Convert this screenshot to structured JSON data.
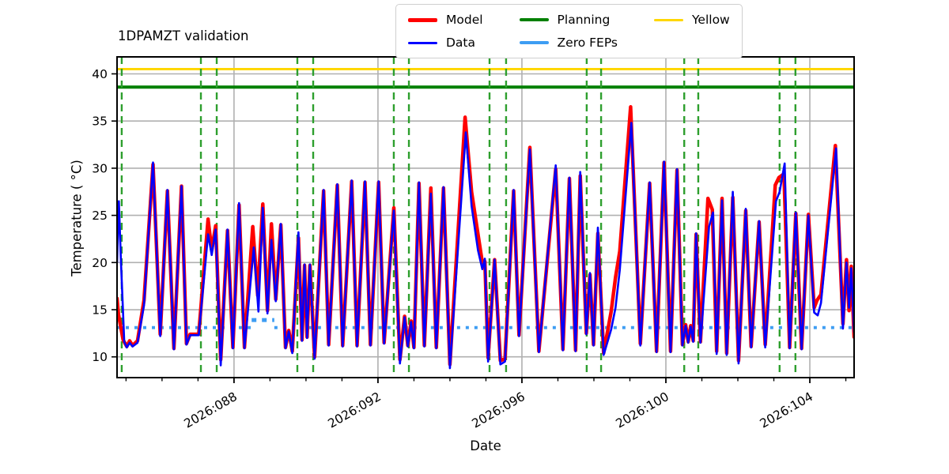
{
  "chart_data": {
    "type": "line",
    "title": "1DPAMZT validation",
    "xlabel": "Date",
    "ylabel": "Temperature ( °C)",
    "x_units": "2026 day-of-year",
    "xlim": [
      84.75,
      105.23
    ],
    "ylim": [
      7.8,
      41.8
    ],
    "grid": true,
    "yticks": [
      10,
      15,
      20,
      25,
      30,
      35,
      40
    ],
    "xticks_major": [
      {
        "x": 88,
        "label": "2026:088"
      },
      {
        "x": 92,
        "label": "2026:092"
      },
      {
        "x": 96,
        "label": "2026:096"
      },
      {
        "x": 100,
        "label": "2026:100"
      },
      {
        "x": 104,
        "label": "2026:104"
      }
    ],
    "xticks_minor": [
      85,
      86,
      87,
      89,
      90,
      91,
      93,
      94,
      95,
      97,
      98,
      99,
      101,
      102,
      103,
      105
    ],
    "limits": {
      "yellow": 40.5,
      "planning": 38.6
    },
    "zero_feps_line": {
      "value": 13.1,
      "raised_segment": {
        "from": 88.49,
        "to": 89.12,
        "value": 13.9
      }
    },
    "vlines_green_dashed": [
      84.88,
      87.08,
      87.52,
      89.76,
      90.2,
      92.44,
      92.86,
      95.1,
      95.56,
      97.8,
      98.2,
      100.51,
      100.9,
      103.16,
      103.6
    ],
    "colors": {
      "model": "#ff0000",
      "data": "#0000ff",
      "planning": "#008000",
      "zero_feps": "#3d9df3",
      "yellow": "#ffd700",
      "vline": "#2e9f2e",
      "grid": "#b0b0b0",
      "spine": "#000000"
    },
    "series": [
      {
        "name": "Model",
        "color": "#ff0000",
        "width": 4.5,
        "points": [
          [
            84.75,
            16.2
          ],
          [
            84.79,
            14.5
          ],
          [
            84.92,
            11.8
          ],
          [
            85.02,
            11.1
          ],
          [
            85.1,
            11.7
          ],
          [
            85.18,
            11.2
          ],
          [
            85.32,
            11.7
          ],
          [
            85.5,
            16.0
          ],
          [
            85.75,
            30.4
          ],
          [
            85.95,
            12.4
          ],
          [
            86.15,
            27.6
          ],
          [
            86.33,
            10.9
          ],
          [
            86.54,
            28.1
          ],
          [
            86.68,
            11.4
          ],
          [
            86.78,
            12.4
          ],
          [
            87.02,
            12.4
          ],
          [
            87.28,
            24.6
          ],
          [
            87.38,
            21.3
          ],
          [
            87.49,
            23.9
          ],
          [
            87.63,
            9.7
          ],
          [
            87.82,
            23.4
          ],
          [
            87.97,
            11.0
          ],
          [
            88.14,
            26.1
          ],
          [
            88.29,
            11.0
          ],
          [
            88.52,
            23.8
          ],
          [
            88.66,
            16.5
          ],
          [
            88.8,
            26.2
          ],
          [
            88.93,
            14.9
          ],
          [
            89.04,
            24.1
          ],
          [
            89.16,
            16.1
          ],
          [
            89.3,
            24.0
          ],
          [
            89.43,
            11.0
          ],
          [
            89.52,
            12.8
          ],
          [
            89.62,
            10.6
          ],
          [
            89.79,
            22.6
          ],
          [
            89.89,
            11.8
          ],
          [
            89.96,
            19.7
          ],
          [
            90.03,
            12.1
          ],
          [
            90.11,
            19.7
          ],
          [
            90.24,
            10.0
          ],
          [
            90.49,
            27.6
          ],
          [
            90.63,
            11.3
          ],
          [
            90.87,
            28.2
          ],
          [
            91.02,
            11.2
          ],
          [
            91.27,
            28.6
          ],
          [
            91.42,
            11.2
          ],
          [
            91.64,
            28.5
          ],
          [
            91.79,
            11.3
          ],
          [
            92.02,
            28.5
          ],
          [
            92.17,
            11.5
          ],
          [
            92.44,
            25.8
          ],
          [
            92.61,
            9.7
          ],
          [
            92.74,
            14.3
          ],
          [
            92.83,
            11.2
          ],
          [
            92.92,
            13.8
          ],
          [
            93.0,
            11.0
          ],
          [
            93.14,
            28.4
          ],
          [
            93.29,
            11.2
          ],
          [
            93.47,
            27.9
          ],
          [
            93.62,
            11.0
          ],
          [
            93.82,
            27.9
          ],
          [
            94.0,
            9.2
          ],
          [
            94.42,
            35.4
          ],
          [
            94.6,
            27.5
          ],
          [
            94.78,
            23.0
          ],
          [
            94.9,
            20.0
          ],
          [
            94.97,
            20.1
          ],
          [
            95.06,
            9.9
          ],
          [
            95.24,
            20.3
          ],
          [
            95.4,
            9.6
          ],
          [
            95.53,
            9.8
          ],
          [
            95.77,
            27.6
          ],
          [
            95.92,
            12.3
          ],
          [
            96.22,
            32.2
          ],
          [
            96.47,
            10.6
          ],
          [
            96.94,
            29.9
          ],
          [
            97.14,
            10.8
          ],
          [
            97.32,
            28.9
          ],
          [
            97.49,
            10.7
          ],
          [
            97.62,
            29.2
          ],
          [
            97.79,
            12.5
          ],
          [
            97.89,
            18.7
          ],
          [
            97.99,
            11.3
          ],
          [
            98.11,
            23.1
          ],
          [
            98.27,
            10.4
          ],
          [
            98.48,
            14.8
          ],
          [
            98.6,
            18.4
          ],
          [
            98.72,
            21.2
          ],
          [
            99.02,
            36.5
          ],
          [
            99.29,
            11.4
          ],
          [
            99.55,
            28.4
          ],
          [
            99.74,
            10.6
          ],
          [
            99.95,
            30.6
          ],
          [
            100.13,
            10.6
          ],
          [
            100.31,
            29.8
          ],
          [
            100.46,
            11.3
          ],
          [
            100.55,
            13.4
          ],
          [
            100.62,
            11.6
          ],
          [
            100.69,
            13.3
          ],
          [
            100.76,
            11.7
          ],
          [
            100.84,
            23.0
          ],
          [
            100.96,
            11.6
          ],
          [
            101.17,
            26.8
          ],
          [
            101.29,
            25.6
          ],
          [
            101.41,
            10.6
          ],
          [
            101.56,
            26.8
          ],
          [
            101.69,
            10.4
          ],
          [
            101.86,
            26.9
          ],
          [
            102.02,
            9.6
          ],
          [
            102.22,
            25.5
          ],
          [
            102.37,
            11.1
          ],
          [
            102.59,
            24.3
          ],
          [
            102.76,
            11.3
          ],
          [
            103.04,
            28.2
          ],
          [
            103.14,
            29.0
          ],
          [
            103.28,
            29.4
          ],
          [
            103.44,
            11.0
          ],
          [
            103.61,
            25.2
          ],
          [
            103.77,
            10.9
          ],
          [
            103.96,
            25.1
          ],
          [
            104.12,
            15.2
          ],
          [
            104.2,
            16.0
          ],
          [
            104.31,
            16.6
          ],
          [
            104.71,
            32.4
          ],
          [
            104.92,
            13.5
          ],
          [
            105.02,
            20.3
          ],
          [
            105.09,
            14.9
          ],
          [
            105.15,
            19.6
          ],
          [
            105.23,
            12.1
          ]
        ]
      },
      {
        "name": "Data",
        "color": "#0000ff",
        "width": 2.6,
        "points": [
          [
            84.75,
            20.0
          ],
          [
            84.8,
            26.5
          ],
          [
            84.86,
            20.0
          ],
          [
            84.95,
            11.6
          ],
          [
            85.02,
            11.0
          ],
          [
            85.1,
            11.5
          ],
          [
            85.18,
            11.1
          ],
          [
            85.32,
            11.5
          ],
          [
            85.5,
            15.5
          ],
          [
            85.75,
            30.6
          ],
          [
            85.95,
            12.2
          ],
          [
            86.15,
            27.7
          ],
          [
            86.33,
            10.8
          ],
          [
            86.54,
            28.1
          ],
          [
            86.68,
            11.3
          ],
          [
            86.78,
            12.3
          ],
          [
            87.02,
            12.3
          ],
          [
            87.28,
            23.0
          ],
          [
            87.38,
            20.8
          ],
          [
            87.49,
            23.5
          ],
          [
            87.63,
            9.1
          ],
          [
            87.82,
            23.5
          ],
          [
            87.97,
            10.9
          ],
          [
            88.14,
            26.3
          ],
          [
            88.29,
            10.9
          ],
          [
            88.55,
            21.6
          ],
          [
            88.68,
            14.8
          ],
          [
            88.8,
            25.8
          ],
          [
            88.93,
            14.6
          ],
          [
            89.04,
            22.4
          ],
          [
            89.16,
            15.9
          ],
          [
            89.3,
            24.1
          ],
          [
            89.43,
            10.9
          ],
          [
            89.52,
            12.7
          ],
          [
            89.62,
            10.4
          ],
          [
            89.79,
            23.2
          ],
          [
            89.89,
            11.7
          ],
          [
            89.96,
            19.8
          ],
          [
            90.03,
            12.0
          ],
          [
            90.11,
            19.8
          ],
          [
            90.24,
            9.8
          ],
          [
            90.49,
            27.7
          ],
          [
            90.63,
            11.2
          ],
          [
            90.87,
            28.3
          ],
          [
            91.02,
            11.1
          ],
          [
            91.27,
            28.7
          ],
          [
            91.42,
            11.1
          ],
          [
            91.64,
            28.6
          ],
          [
            91.79,
            11.2
          ],
          [
            92.02,
            28.6
          ],
          [
            92.17,
            11.4
          ],
          [
            92.44,
            25.5
          ],
          [
            92.61,
            9.3
          ],
          [
            92.74,
            14.2
          ],
          [
            92.83,
            11.1
          ],
          [
            92.92,
            13.7
          ],
          [
            93.0,
            10.9
          ],
          [
            93.14,
            28.5
          ],
          [
            93.29,
            11.1
          ],
          [
            93.47,
            27.3
          ],
          [
            93.62,
            10.9
          ],
          [
            93.82,
            28.0
          ],
          [
            94.0,
            8.8
          ],
          [
            94.44,
            33.8
          ],
          [
            94.6,
            26.0
          ],
          [
            94.78,
            21.3
          ],
          [
            94.9,
            19.3
          ],
          [
            94.97,
            20.4
          ],
          [
            95.06,
            9.5
          ],
          [
            95.24,
            20.3
          ],
          [
            95.4,
            9.2
          ],
          [
            95.53,
            9.5
          ],
          [
            95.77,
            27.7
          ],
          [
            95.92,
            12.2
          ],
          [
            96.22,
            32.0
          ],
          [
            96.47,
            10.5
          ],
          [
            96.94,
            30.3
          ],
          [
            97.14,
            10.7
          ],
          [
            97.32,
            29.0
          ],
          [
            97.49,
            10.6
          ],
          [
            97.62,
            29.6
          ],
          [
            97.79,
            12.4
          ],
          [
            97.89,
            18.9
          ],
          [
            97.99,
            11.2
          ],
          [
            98.11,
            23.7
          ],
          [
            98.27,
            10.2
          ],
          [
            98.48,
            12.9
          ],
          [
            98.6,
            15.2
          ],
          [
            98.72,
            19.2
          ],
          [
            99.04,
            34.8
          ],
          [
            99.29,
            11.2
          ],
          [
            99.55,
            28.5
          ],
          [
            99.74,
            10.5
          ],
          [
            99.95,
            30.7
          ],
          [
            100.13,
            10.5
          ],
          [
            100.31,
            29.9
          ],
          [
            100.46,
            11.2
          ],
          [
            100.55,
            13.3
          ],
          [
            100.62,
            11.5
          ],
          [
            100.69,
            13.2
          ],
          [
            100.76,
            11.6
          ],
          [
            100.84,
            23.1
          ],
          [
            100.96,
            11.5
          ],
          [
            101.2,
            23.8
          ],
          [
            101.31,
            25.3
          ],
          [
            101.41,
            10.3
          ],
          [
            101.56,
            26.6
          ],
          [
            101.69,
            10.2
          ],
          [
            101.86,
            27.5
          ],
          [
            102.02,
            9.3
          ],
          [
            102.22,
            25.7
          ],
          [
            102.37,
            11.0
          ],
          [
            102.59,
            24.4
          ],
          [
            102.76,
            11.0
          ],
          [
            103.06,
            26.5
          ],
          [
            103.16,
            27.5
          ],
          [
            103.3,
            30.5
          ],
          [
            103.44,
            10.9
          ],
          [
            103.61,
            25.3
          ],
          [
            103.77,
            10.8
          ],
          [
            103.96,
            25.0
          ],
          [
            104.12,
            14.7
          ],
          [
            104.22,
            14.4
          ],
          [
            104.31,
            15.7
          ],
          [
            104.73,
            32.1
          ],
          [
            104.92,
            13.0
          ],
          [
            105.02,
            20.0
          ],
          [
            105.09,
            15.2
          ],
          [
            105.15,
            19.4
          ],
          [
            105.23,
            12.6
          ]
        ]
      }
    ],
    "legend": {
      "columns": [
        [
          {
            "label": "Model",
            "color": "#ff0000",
            "thickness": 5
          },
          {
            "label": "Data",
            "color": "#0000ff",
            "thickness": 3
          }
        ],
        [
          {
            "label": "Planning",
            "color": "#008000",
            "thickness": 4
          },
          {
            "label": "Zero FEPs",
            "color": "#3d9df3",
            "thickness": 4
          }
        ],
        [
          {
            "label": "Yellow",
            "color": "#ffd700",
            "thickness": 3
          }
        ]
      ]
    }
  }
}
